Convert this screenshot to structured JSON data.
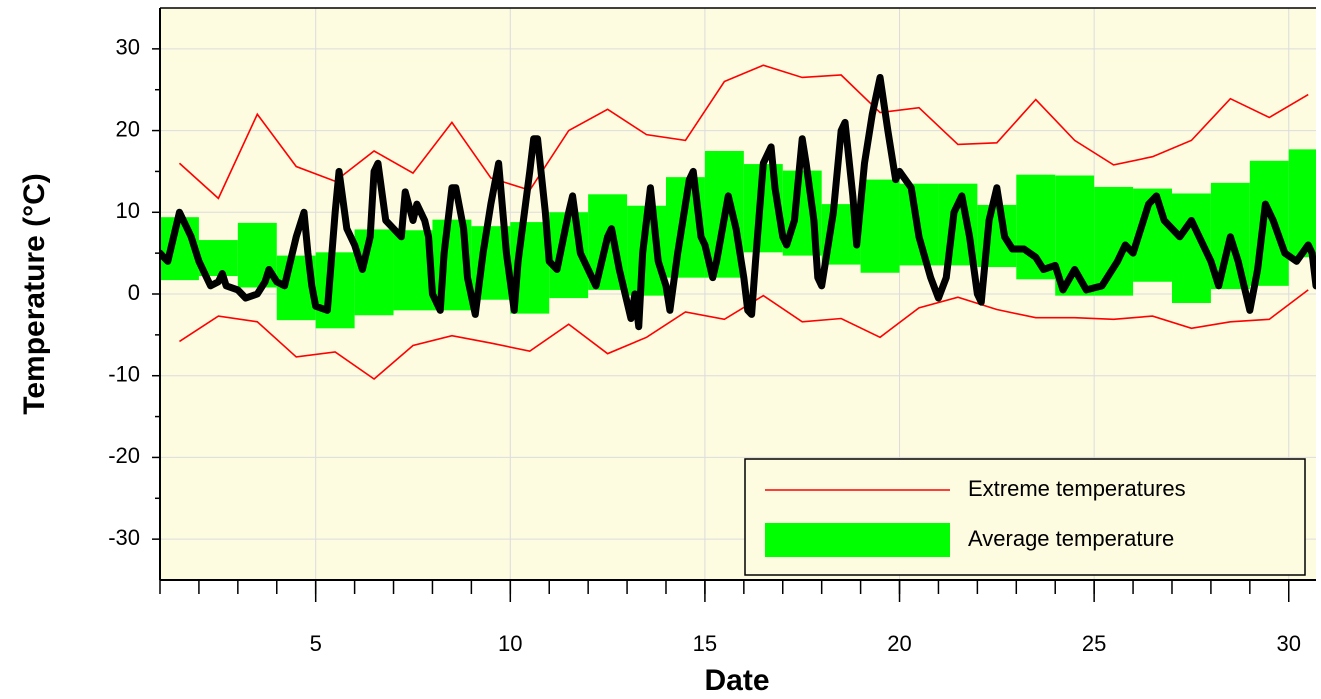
{
  "chart_data": {
    "type": "line",
    "xlabel": "Date",
    "ylabel": "Temperature (°C)",
    "xlim": [
      1,
      30.7
    ],
    "ylim": [
      -35,
      35
    ],
    "xticks": [
      5,
      10,
      15,
      20,
      25,
      30
    ],
    "yticks": [
      -30,
      -20,
      -10,
      0,
      10,
      20,
      30
    ],
    "grid": true,
    "legend": "lower right",
    "series": [
      {
        "name": "Extreme temperatures",
        "type": "range-lines",
        "color": "#ff0000",
        "x": [
          1.5,
          2.5,
          3.5,
          4.5,
          5.5,
          6.5,
          7.5,
          8.5,
          9.5,
          10.5,
          11.5,
          12.5,
          13.5,
          14.5,
          15.5,
          16.5,
          17.5,
          18.5,
          19.5,
          20.5,
          21.5,
          22.5,
          23.5,
          24.5,
          25.5,
          26.5,
          27.5,
          28.5,
          29.5,
          30.5
        ],
        "high": [
          16,
          11.7,
          22,
          15.6,
          13.8,
          17.5,
          14.8,
          21,
          14.2,
          12.7,
          20,
          22.6,
          19.5,
          18.8,
          26,
          28,
          26.5,
          26.8,
          22.2,
          22.8,
          18.3,
          18.5,
          23.8,
          18.8,
          15.8,
          16.8,
          18.8,
          23.9,
          21.6,
          24.4
        ],
        "low": [
          -5.8,
          -2.7,
          -3.4,
          -7.7,
          -7.1,
          -10.4,
          -6.3,
          -5.1,
          -6,
          -7,
          -3.7,
          -7.3,
          -5.3,
          -2.2,
          -3.1,
          -0.2,
          -3.4,
          -3,
          -5.3,
          -1.7,
          -0.4,
          -1.9,
          -2.9,
          -2.9,
          -3.1,
          -2.7,
          -4.2,
          -3.4,
          -3.1,
          0.5
        ]
      },
      {
        "name": "Average temperature",
        "type": "band",
        "color": "#00ff00",
        "x": [
          1,
          2,
          3,
          4,
          5,
          6,
          7,
          8,
          9,
          10,
          11,
          12,
          13,
          14,
          15,
          16,
          17,
          18,
          19,
          20,
          21,
          22,
          23,
          24,
          25,
          26,
          27,
          28,
          29,
          30
        ],
        "low": [
          1.7,
          2.2,
          0.8,
          -3.2,
          -4.2,
          -2.6,
          -2,
          -2,
          -0.7,
          -2.4,
          -0.5,
          0.5,
          -0.2,
          2,
          2,
          5.1,
          4.7,
          3.6,
          2.6,
          3.5,
          3.5,
          3.3,
          1.8,
          -0.2,
          -0.2,
          1.5,
          -1.1,
          0.6,
          1,
          4.5
        ],
        "high": [
          9.4,
          6.6,
          8.7,
          4.7,
          5.1,
          7.9,
          7.8,
          9.1,
          8.3,
          8.8,
          10,
          12.2,
          10.8,
          14.3,
          17.5,
          15.9,
          15.1,
          11,
          14,
          13.5,
          13.5,
          10.9,
          14.6,
          14.5,
          13.1,
          12.9,
          12.3,
          13.6,
          16.3,
          17.7
        ]
      },
      {
        "type": "line",
        "color": "#000000",
        "x": [
          1.0,
          1.2,
          1.5,
          1.8,
          2.0,
          2.3,
          2.5,
          2.6,
          2.7,
          3.0,
          3.2,
          3.5,
          3.7,
          3.8,
          4.0,
          4.2,
          4.5,
          4.7,
          4.8,
          4.9,
          5.0,
          5.3,
          5.5,
          5.6,
          5.8,
          6.0,
          6.2,
          6.4,
          6.5,
          6.6,
          6.8,
          7.0,
          7.2,
          7.3,
          7.5,
          7.6,
          7.8,
          7.9,
          8.0,
          8.2,
          8.3,
          8.5,
          8.6,
          8.8,
          8.9,
          9.1,
          9.3,
          9.5,
          9.7,
          9.9,
          10.1,
          10.2,
          10.5,
          10.6,
          10.7,
          10.9,
          11.0,
          11.2,
          11.5,
          11.6,
          11.8,
          12.0,
          12.2,
          12.5,
          12.6,
          12.8,
          13.0,
          13.1,
          13.2,
          13.3,
          13.4,
          13.6,
          13.8,
          14.0,
          14.1,
          14.3,
          14.6,
          14.7,
          14.9,
          15.0,
          15.2,
          15.3,
          15.6,
          15.8,
          16.0,
          16.1,
          16.2,
          16.3,
          16.5,
          16.7,
          16.8,
          17.0,
          17.1,
          17.3,
          17.5,
          17.6,
          17.8,
          17.9,
          18.0,
          18.3,
          18.5,
          18.6,
          18.8,
          18.9,
          19.1,
          19.3,
          19.5,
          19.7,
          19.9,
          20.0,
          20.3,
          20.5,
          20.8,
          21.0,
          21.2,
          21.4,
          21.6,
          21.8,
          22.0,
          22.1,
          22.3,
          22.5,
          22.7,
          22.9,
          23.2,
          23.5,
          23.7,
          24.0,
          24.2,
          24.5,
          24.8,
          25.2,
          25.6,
          25.8,
          26.0,
          26.2,
          26.4,
          26.6,
          26.8,
          27.2,
          27.5,
          27.8,
          28.0,
          28.2,
          28.5,
          28.7,
          29.0,
          29.2,
          29.4,
          29.6,
          29.9,
          30.2,
          30.5,
          30.6,
          30.7
        ],
        "values": [
          5,
          4,
          10,
          7,
          4,
          1,
          1.5,
          2.5,
          1,
          0.5,
          -0.5,
          0,
          1.5,
          3,
          1.5,
          1,
          7,
          10,
          5,
          1,
          -1.5,
          -2,
          10,
          15,
          8,
          6,
          3,
          7,
          15,
          16,
          9,
          8,
          7,
          12.5,
          9,
          11,
          9,
          7,
          0,
          -2,
          5,
          13,
          13,
          8,
          2,
          -2.5,
          5,
          11,
          16,
          5,
          -2,
          4,
          15,
          19,
          19,
          10,
          4,
          3,
          10,
          12,
          5,
          3,
          1,
          7,
          8,
          3,
          -1,
          -3,
          0,
          -4,
          5,
          13,
          4,
          1,
          -2,
          5,
          14,
          15,
          7,
          6,
          2,
          4,
          12,
          8,
          2,
          -2,
          -2.5,
          4,
          16,
          18,
          13,
          7,
          6,
          9,
          19,
          16,
          9,
          2,
          1,
          10,
          20,
          21,
          12,
          6,
          16,
          22,
          26.5,
          20,
          14,
          15,
          13,
          7,
          2,
          -0.5,
          2,
          10,
          12,
          7,
          0,
          -1,
          9,
          13,
          7,
          5.5,
          5.5,
          4.5,
          3,
          3.5,
          0.5,
          3,
          0.5,
          1,
          4,
          6,
          5,
          8,
          11,
          12,
          9,
          7,
          9,
          6,
          4,
          1,
          7,
          4,
          -2,
          3,
          11,
          9,
          5,
          4,
          6,
          5,
          1
        ]
      }
    ]
  }
}
